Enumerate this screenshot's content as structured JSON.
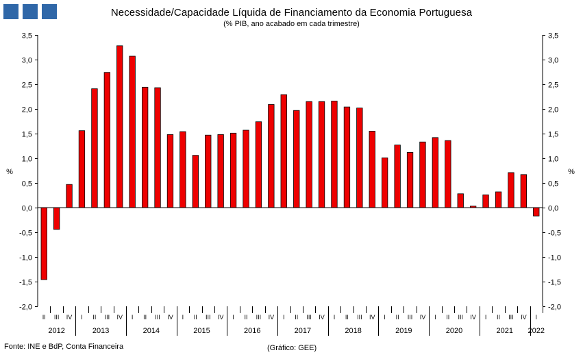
{
  "header": {
    "title": "Necessidade/Capacidade Líquida de Financiamento da Economia Portuguesa",
    "subtitle": "(% PIB, ano acabado em cada trimestre)",
    "logo_color": "#2f67a8"
  },
  "footer": {
    "source": "Fonte: INE e BdP, Conta Financeira",
    "credit": "(Gráfico: GEE)"
  },
  "chart_data": {
    "type": "bar",
    "ylabel_left": "%",
    "ylabel_right": "%",
    "ylim": [
      -2.0,
      3.5
    ],
    "ytick_step": 0.5,
    "grid": false,
    "legend": "none",
    "bar_color": "#ee0000",
    "years": [
      {
        "label": "2012",
        "quarters": [
          "II",
          "III",
          "IV"
        ]
      },
      {
        "label": "2013",
        "quarters": [
          "I",
          "II",
          "III",
          "IV"
        ]
      },
      {
        "label": "2014",
        "quarters": [
          "I",
          "II",
          "III",
          "IV"
        ]
      },
      {
        "label": "2015",
        "quarters": [
          "I",
          "II",
          "III",
          "IV"
        ]
      },
      {
        "label": "2016",
        "quarters": [
          "I",
          "II",
          "III",
          "IV"
        ]
      },
      {
        "label": "2017",
        "quarters": [
          "I",
          "II",
          "III",
          "IV"
        ]
      },
      {
        "label": "2018",
        "quarters": [
          "I",
          "II",
          "III",
          "IV"
        ]
      },
      {
        "label": "2019",
        "quarters": [
          "I",
          "II",
          "III",
          "IV"
        ]
      },
      {
        "label": "2020",
        "quarters": [
          "I",
          "II",
          "III",
          "IV"
        ]
      },
      {
        "label": "2021",
        "quarters": [
          "I",
          "II",
          "III",
          "IV"
        ]
      },
      {
        "label": "2022",
        "quarters": [
          "I"
        ]
      }
    ],
    "values": [
      -1.46,
      -0.44,
      0.47,
      1.56,
      2.41,
      2.74,
      3.28,
      3.07,
      2.44,
      2.43,
      1.48,
      1.54,
      1.06,
      1.47,
      1.48,
      1.51,
      1.57,
      1.74,
      2.09,
      2.29,
      1.97,
      2.15,
      2.15,
      2.16,
      2.04,
      2.02,
      1.55,
      1.01,
      1.27,
      1.12,
      1.33,
      1.42,
      1.36,
      0.28,
      0.03,
      0.26,
      0.32,
      0.71,
      0.67,
      -0.17
    ]
  }
}
